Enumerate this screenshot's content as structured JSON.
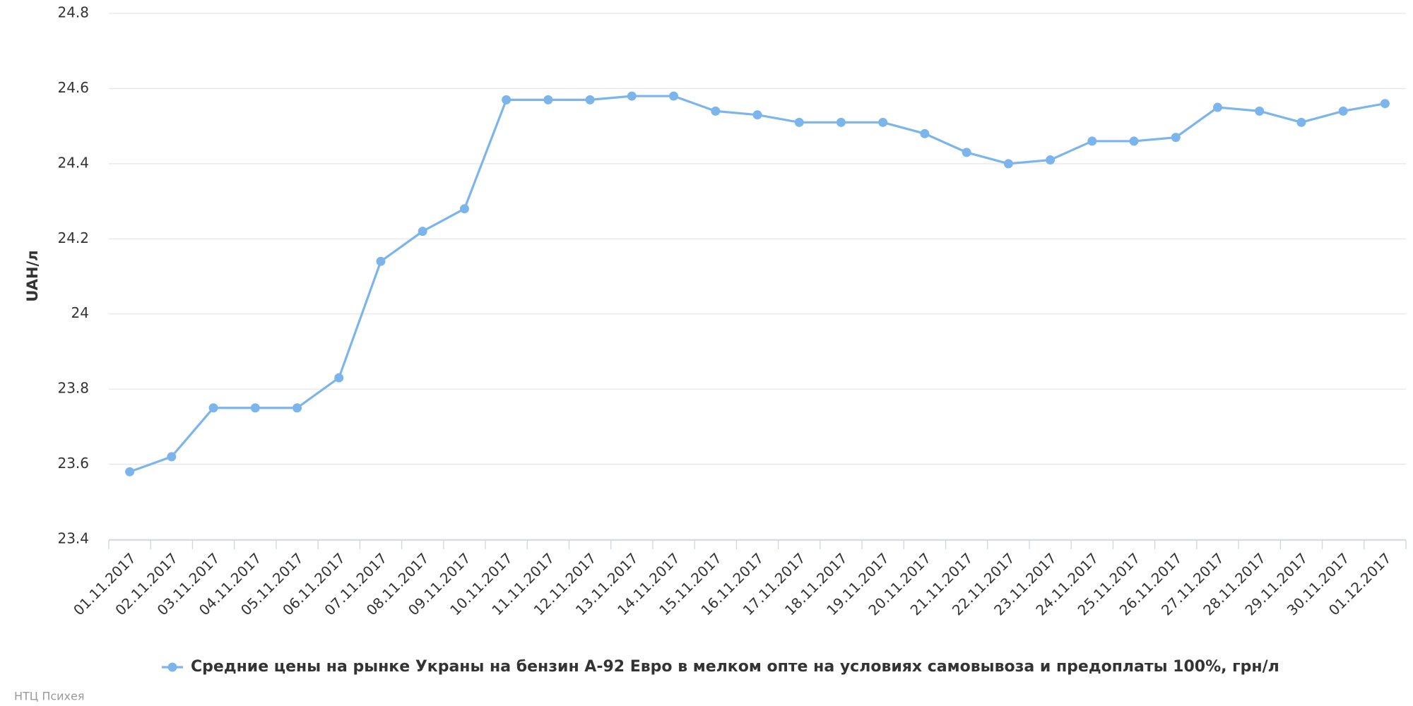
{
  "chart_data": {
    "type": "line",
    "y_label": "UAH/л",
    "credit": "НТЦ Психея",
    "categories": [
      "01.11.2017",
      "02.11.2017",
      "03.11.2017",
      "04.11.2017",
      "05.11.2017",
      "06.11.2017",
      "07.11.2017",
      "08.11.2017",
      "09.11.2017",
      "10.11.2017",
      "11.11.2017",
      "12.11.2017",
      "13.11.2017",
      "14.11.2017",
      "15.11.2017",
      "16.11.2017",
      "17.11.2017",
      "18.11.2017",
      "19.11.2017",
      "20.11.2017",
      "21.11.2017",
      "22.11.2017",
      "23.11.2017",
      "24.11.2017",
      "25.11.2017",
      "26.11.2017",
      "27.11.2017",
      "28.11.2017",
      "29.11.2017",
      "30.11.2017",
      "01.12.2017"
    ],
    "series": [
      {
        "name": "Средние цены на рынке Украны на бензин А-92 Евро в мелком опте на условиях самовывоза и предоплаты 100%, грн/л",
        "color": "#7cb5ec",
        "values": [
          23.58,
          23.62,
          23.75,
          23.75,
          23.75,
          23.83,
          24.14,
          24.22,
          24.28,
          24.57,
          24.57,
          24.57,
          24.58,
          24.58,
          24.54,
          24.53,
          24.51,
          24.51,
          24.51,
          24.48,
          24.43,
          24.4,
          24.41,
          24.46,
          24.46,
          24.47,
          24.55,
          24.54,
          24.51,
          24.54,
          24.56
        ]
      }
    ],
    "ylim": [
      23.4,
      24.8
    ],
    "yticks": [
      23.4,
      23.6,
      23.8,
      24,
      24.2,
      24.4,
      24.6,
      24.8
    ],
    "grid": true
  }
}
